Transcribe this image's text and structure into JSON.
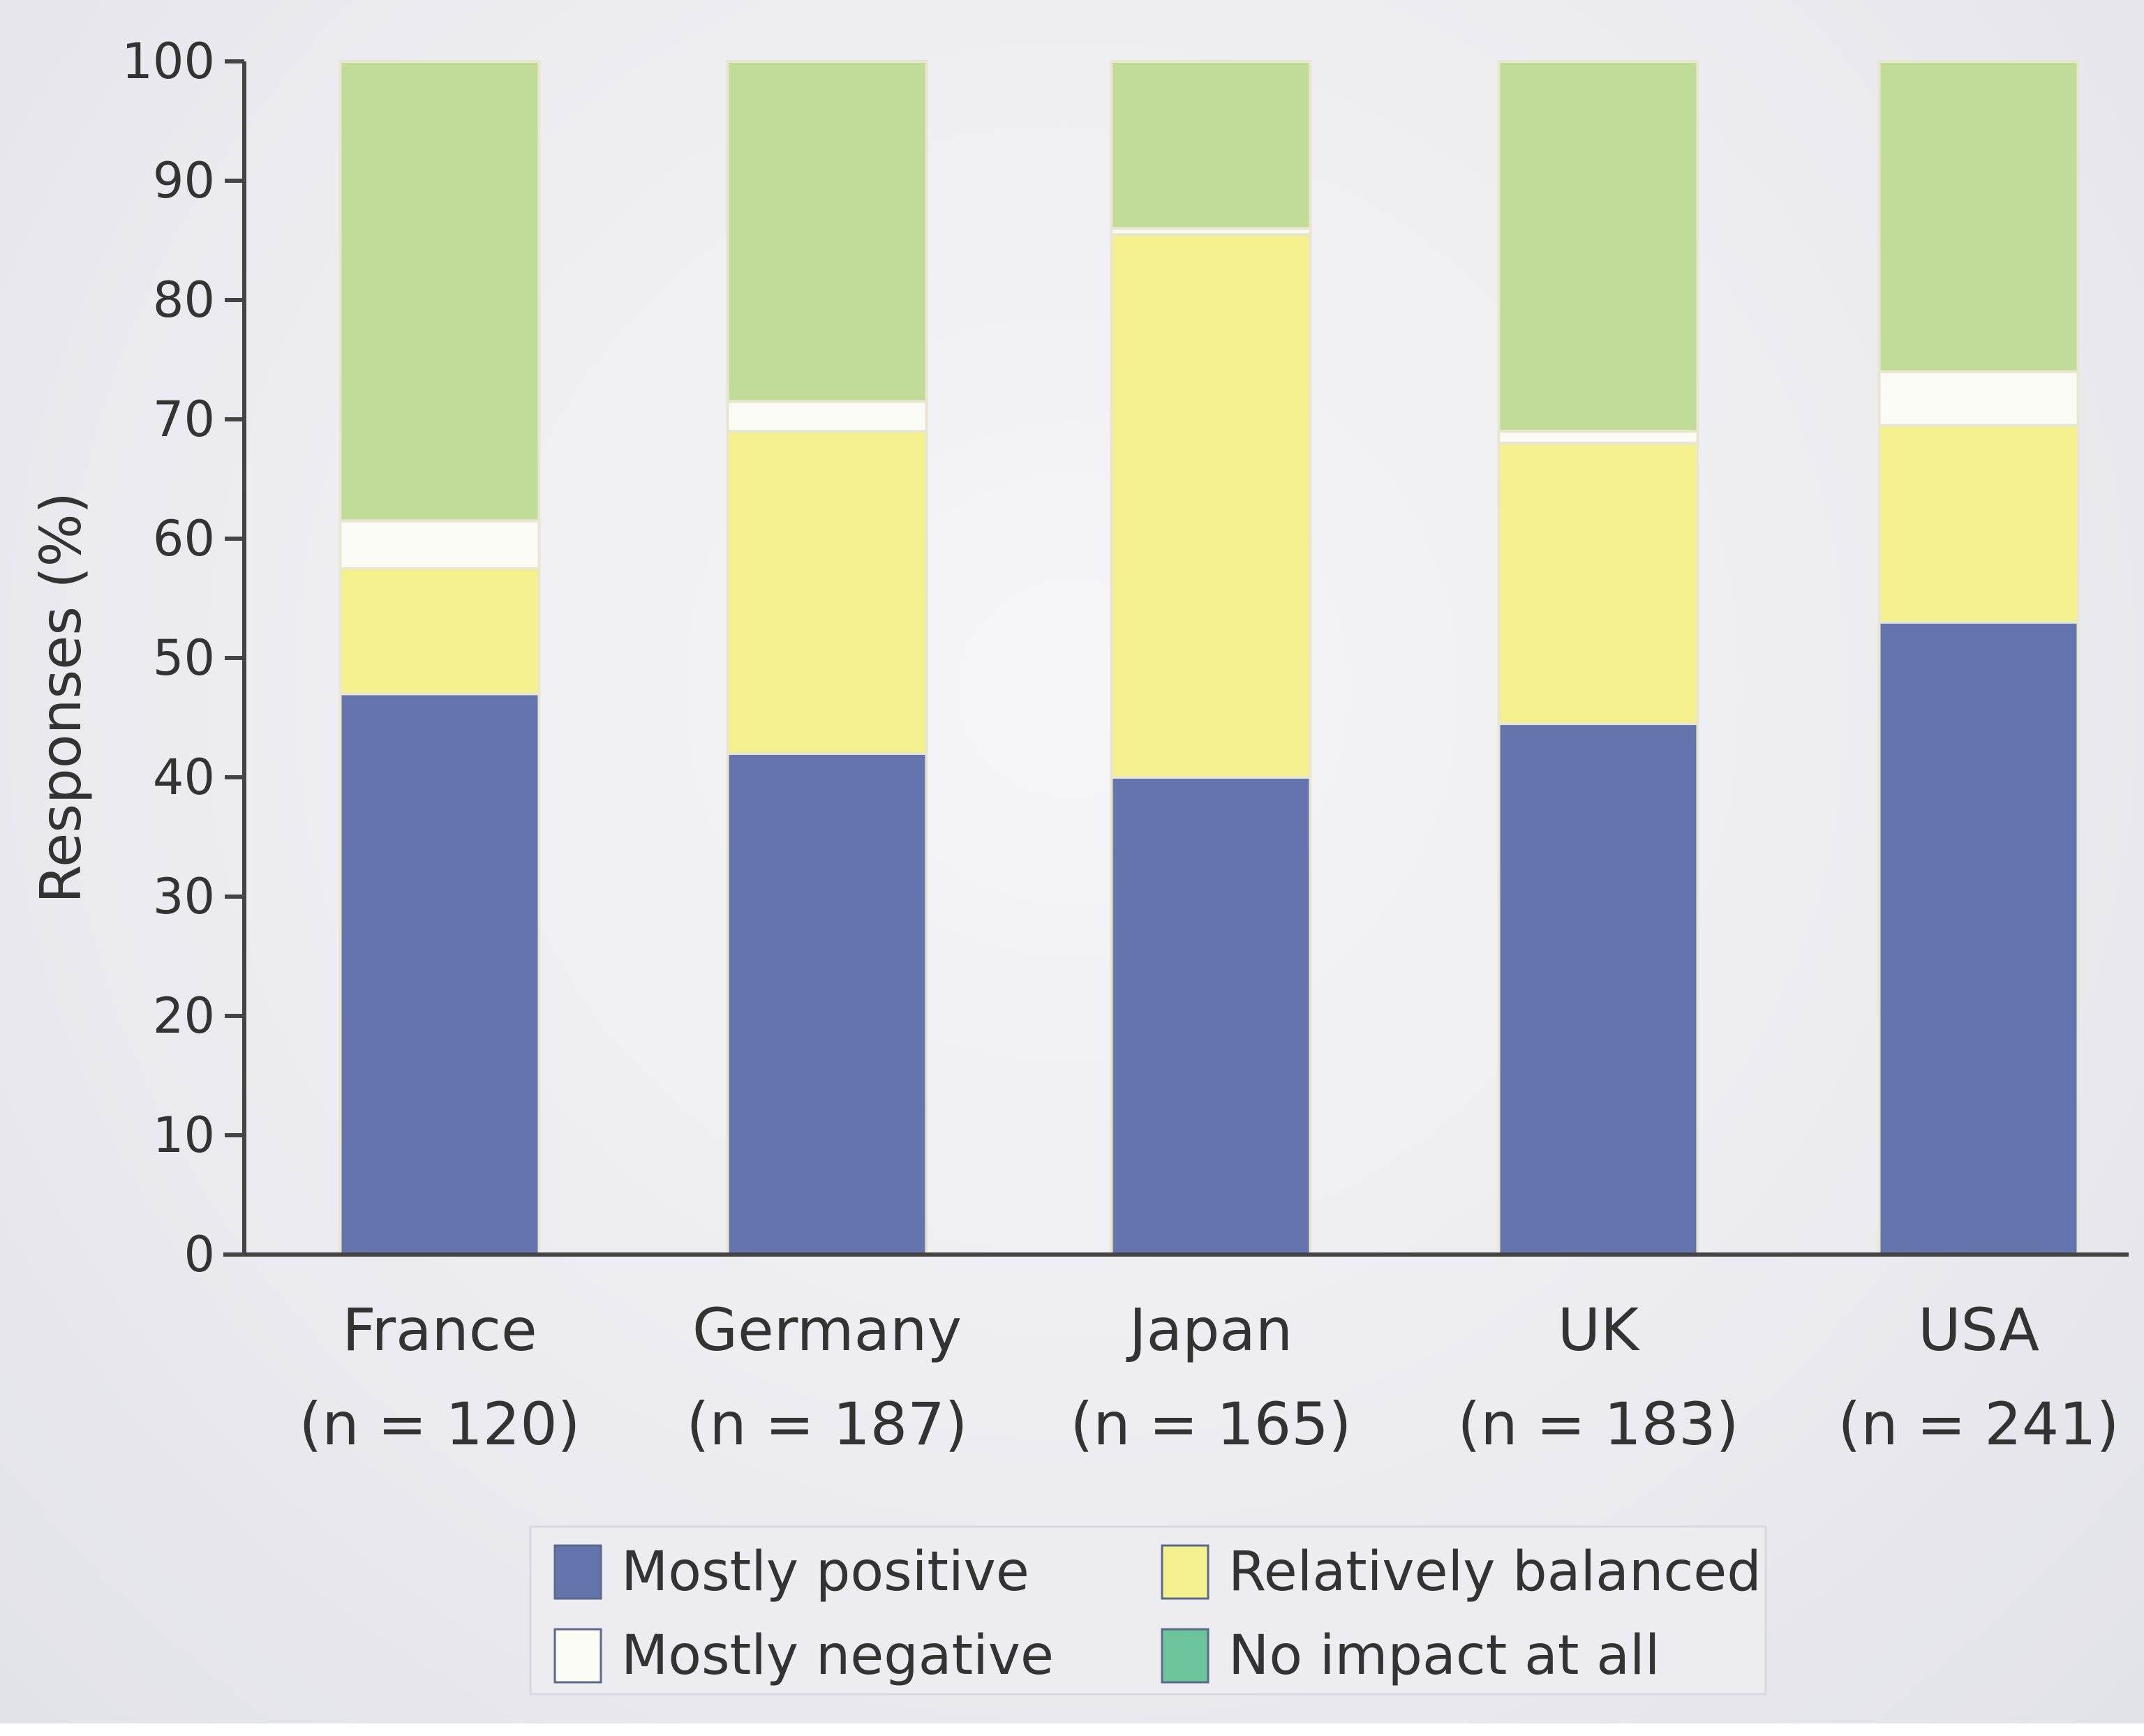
{
  "chart_data": {
    "type": "bar",
    "stacked": true,
    "title": "",
    "xlabel": "",
    "ylabel": "Responses (%)",
    "ylim": [
      0,
      100
    ],
    "yticks": [
      0,
      10,
      20,
      30,
      40,
      50,
      60,
      70,
      80,
      90,
      100
    ],
    "grid": false,
    "categories": [
      "France",
      "Germany",
      "Japan",
      "UK",
      "USA"
    ],
    "category_sublabels": [
      "(n = 120)",
      "(n = 187)",
      "(n = 165)",
      "(n = 183)",
      "(n = 241)"
    ],
    "series": [
      {
        "name": "Mostly positive",
        "color": "#6474ad",
        "values": [
          47,
          42,
          40,
          44.5,
          53
        ]
      },
      {
        "name": "Relatively balanced",
        "color": "#f5f08e",
        "values": [
          10.5,
          27,
          45.5,
          23.5,
          16.5
        ]
      },
      {
        "name": "Mostly negative",
        "color": "#fbfbf6",
        "values": [
          4,
          2.5,
          0.5,
          1,
          4.5
        ]
      },
      {
        "name": "No impact at all",
        "color": "#c1dc98",
        "values": [
          38.5,
          28.5,
          14,
          31,
          26
        ]
      }
    ],
    "legend": {
      "placement": "bottom",
      "entries": [
        {
          "label": "Mostly positive",
          "color": "#6474ad"
        },
        {
          "label": "Relatively balanced",
          "color": "#f5f08e"
        },
        {
          "label": "Mostly negative",
          "color": "#fbfbf6"
        },
        {
          "label": "No impact at all",
          "color": "#6cc49a"
        }
      ]
    }
  }
}
